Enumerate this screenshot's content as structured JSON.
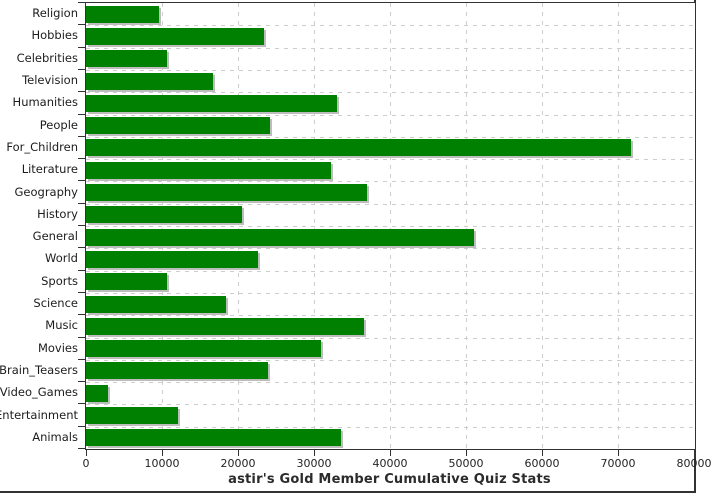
{
  "chart_data": {
    "type": "bar",
    "orientation": "horizontal",
    "title": "astir's Gold Member Cumulative Quiz Stats",
    "categories": [
      "Religion",
      "Hobbies",
      "Celebrities",
      "Television",
      "Humanities",
      "People",
      "For_Children",
      "Literature",
      "Geography",
      "History",
      "General",
      "World",
      "Sports",
      "Science",
      "Music",
      "Movies",
      "Brain_Teasers",
      "Video_Games",
      "Entertainment",
      "Animals"
    ],
    "values": [
      9600,
      23400,
      10700,
      16700,
      33000,
      24200,
      71700,
      32300,
      37000,
      20500,
      51000,
      22600,
      10700,
      18400,
      36600,
      30900,
      23900,
      2900,
      12100,
      33600
    ],
    "xlabel": "",
    "ylabel": "",
    "xlim": [
      0,
      80000
    ],
    "x_ticks": [
      0,
      10000,
      20000,
      30000,
      40000,
      50000,
      60000,
      70000,
      80000
    ],
    "x_tick_labels": [
      "0",
      "10000",
      "20000",
      "30000",
      "40000",
      "50000",
      "60000",
      "70000",
      "80000"
    ],
    "grid": true,
    "legend": "none",
    "bar_color": "#008000",
    "bar_shadow_color": "#bdbdbd",
    "grid_color": "#cdcdcd",
    "axis_color": "#323232",
    "text_color": "#1c1c1c",
    "background": "#ffffff"
  }
}
